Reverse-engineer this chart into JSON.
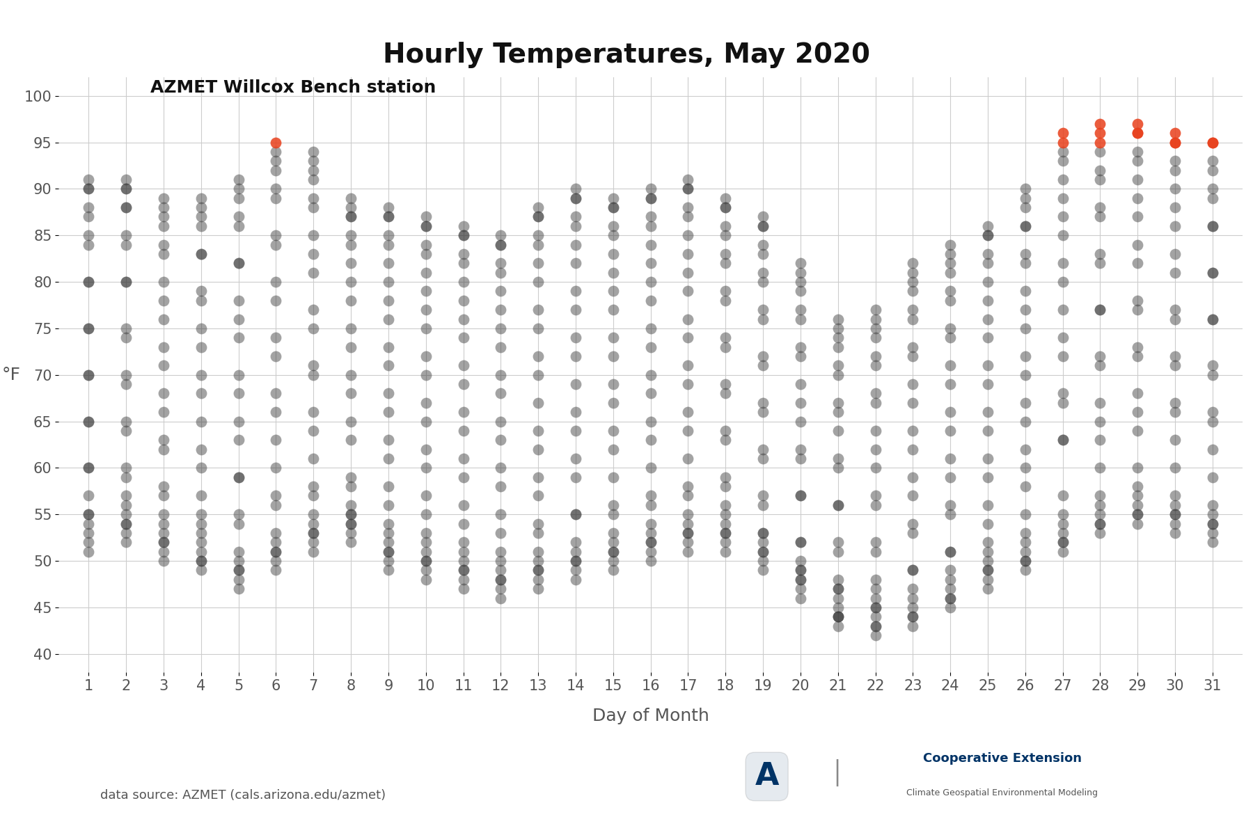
{
  "title": "Hourly Temperatures, May 2020",
  "subtitle": "AZMET Willcox Bench station",
  "xlabel": "Day of Month",
  "ylabel": "°F",
  "source_text": "data source: AZMET (cals.arizona.edu/azmet)",
  "ylim": [
    38,
    102
  ],
  "yticks": [
    40,
    45,
    50,
    55,
    60,
    65,
    70,
    75,
    80,
    85,
    90,
    95,
    100
  ],
  "days": 31,
  "background_color": "#ffffff",
  "dot_color": "#333333",
  "dot_alpha": 0.45,
  "dot_size": 130,
  "highlight_color": "#e8401c",
  "highlight_threshold": 95.0,
  "title_fontsize": 28,
  "subtitle_fontsize": 18,
  "axis_label_fontsize": 16,
  "tick_fontsize": 15,
  "source_fontsize": 13,
  "grid_color": "#cccccc",
  "hourly_temps": [
    [
      55,
      54,
      53,
      52,
      51,
      55,
      60,
      65,
      70,
      75,
      80,
      84,
      87,
      90,
      91,
      90,
      88,
      85,
      80,
      75,
      70,
      65,
      60,
      57
    ],
    [
      56,
      55,
      54,
      53,
      52,
      54,
      59,
      64,
      69,
      74,
      80,
      84,
      88,
      90,
      91,
      90,
      88,
      85,
      80,
      75,
      70,
      65,
      60,
      57
    ],
    [
      54,
      53,
      52,
      51,
      50,
      52,
      57,
      62,
      66,
      71,
      76,
      80,
      84,
      87,
      89,
      88,
      86,
      83,
      78,
      73,
      68,
      63,
      58,
      55
    ],
    [
      53,
      52,
      51,
      50,
      49,
      50,
      55,
      60,
      65,
      70,
      75,
      79,
      83,
      87,
      89,
      88,
      86,
      83,
      78,
      73,
      68,
      62,
      57,
      54
    ],
    [
      51,
      50,
      49,
      48,
      47,
      49,
      54,
      59,
      63,
      68,
      74,
      78,
      82,
      86,
      90,
      91,
      89,
      87,
      82,
      76,
      70,
      65,
      59,
      55
    ],
    [
      53,
      52,
      51,
      50,
      49,
      51,
      57,
      63,
      68,
      74,
      80,
      85,
      90,
      93,
      95,
      94,
      92,
      89,
      84,
      78,
      72,
      66,
      60,
      56
    ],
    [
      55,
      54,
      53,
      52,
      51,
      53,
      58,
      64,
      70,
      75,
      81,
      85,
      89,
      92,
      94,
      93,
      91,
      88,
      83,
      77,
      71,
      66,
      61,
      57
    ],
    [
      56,
      55,
      54,
      53,
      52,
      54,
      59,
      65,
      70,
      75,
      80,
      84,
      87,
      89,
      88,
      87,
      85,
      82,
      78,
      73,
      68,
      63,
      58,
      55
    ],
    [
      53,
      52,
      51,
      50,
      49,
      51,
      56,
      61,
      66,
      71,
      76,
      80,
      84,
      87,
      88,
      87,
      85,
      82,
      78,
      73,
      68,
      63,
      58,
      54
    ],
    [
      52,
      51,
      50,
      49,
      48,
      50,
      55,
      60,
      65,
      70,
      75,
      79,
      83,
      86,
      87,
      86,
      84,
      81,
      77,
      72,
      67,
      62,
      57,
      53
    ],
    [
      51,
      50,
      49,
      48,
      47,
      49,
      54,
      59,
      64,
      69,
      74,
      78,
      82,
      85,
      86,
      85,
      83,
      80,
      76,
      71,
      66,
      61,
      56,
      52
    ],
    [
      50,
      49,
      48,
      47,
      46,
      48,
      53,
      58,
      63,
      68,
      73,
      77,
      81,
      84,
      85,
      84,
      82,
      79,
      75,
      70,
      65,
      60,
      55,
      51
    ],
    [
      51,
      50,
      49,
      48,
      47,
      49,
      54,
      59,
      64,
      70,
      75,
      80,
      84,
      87,
      88,
      87,
      85,
      82,
      77,
      72,
      67,
      62,
      57,
      53
    ],
    [
      52,
      51,
      50,
      49,
      48,
      50,
      55,
      61,
      66,
      72,
      77,
      82,
      86,
      89,
      90,
      89,
      87,
      84,
      79,
      74,
      69,
      64,
      59,
      55
    ],
    [
      53,
      52,
      51,
      50,
      49,
      51,
      56,
      62,
      67,
      72,
      77,
      81,
      85,
      88,
      89,
      88,
      86,
      83,
      79,
      74,
      69,
      64,
      59,
      55
    ],
    [
      54,
      53,
      52,
      51,
      50,
      52,
      57,
      63,
      68,
      73,
      78,
      82,
      86,
      89,
      90,
      89,
      87,
      84,
      80,
      75,
      70,
      65,
      60,
      56
    ],
    [
      55,
      54,
      53,
      52,
      51,
      53,
      58,
      64,
      69,
      74,
      79,
      83,
      87,
      90,
      91,
      90,
      88,
      85,
      81,
      76,
      71,
      66,
      61,
      57
    ],
    [
      55,
      54,
      53,
      52,
      51,
      53,
      58,
      63,
      68,
      73,
      78,
      82,
      85,
      88,
      89,
      88,
      86,
      83,
      79,
      74,
      69,
      64,
      59,
      56
    ],
    [
      53,
      52,
      51,
      50,
      49,
      51,
      56,
      61,
      66,
      71,
      76,
      80,
      83,
      86,
      87,
      86,
      84,
      81,
      77,
      72,
      67,
      62,
      57,
      53
    ],
    [
      50,
      49,
      48,
      47,
      46,
      48,
      52,
      57,
      61,
      65,
      69,
      73,
      77,
      80,
      82,
      81,
      79,
      76,
      72,
      67,
      62,
      57,
      52,
      49
    ],
    [
      47,
      46,
      45,
      44,
      43,
      44,
      48,
      52,
      56,
      60,
      64,
      67,
      71,
      74,
      76,
      75,
      73,
      70,
      66,
      61,
      56,
      51,
      47,
      44
    ],
    [
      46,
      45,
      44,
      43,
      42,
      43,
      47,
      51,
      56,
      60,
      64,
      68,
      72,
      75,
      77,
      76,
      74,
      71,
      67,
      62,
      57,
      52,
      48,
      45
    ],
    [
      47,
      46,
      45,
      44,
      43,
      44,
      49,
      54,
      59,
      64,
      69,
      73,
      77,
      80,
      82,
      81,
      79,
      76,
      72,
      67,
      62,
      57,
      53,
      49
    ],
    [
      49,
      48,
      47,
      46,
      45,
      46,
      51,
      56,
      61,
      66,
      71,
      75,
      79,
      82,
      84,
      83,
      81,
      78,
      74,
      69,
      64,
      59,
      55,
      51
    ],
    [
      51,
      50,
      49,
      48,
      47,
      49,
      54,
      59,
      64,
      69,
      74,
      78,
      82,
      85,
      86,
      85,
      83,
      80,
      76,
      71,
      66,
      61,
      56,
      52
    ],
    [
      53,
      52,
      51,
      50,
      49,
      50,
      55,
      60,
      65,
      70,
      75,
      79,
      83,
      86,
      89,
      90,
      88,
      86,
      82,
      77,
      72,
      67,
      62,
      58
    ],
    [
      55,
      54,
      53,
      52,
      51,
      52,
      57,
      63,
      68,
      74,
      80,
      85,
      89,
      93,
      95,
      96,
      94,
      91,
      87,
      82,
      77,
      72,
      67,
      63
    ],
    [
      57,
      56,
      55,
      54,
      53,
      54,
      60,
      65,
      71,
      77,
      83,
      88,
      92,
      95,
      97,
      96,
      94,
      91,
      87,
      82,
      77,
      72,
      67,
      63
    ],
    [
      58,
      57,
      56,
      55,
      54,
      55,
      60,
      66,
      72,
      78,
      84,
      89,
      93,
      96,
      97,
      96,
      94,
      91,
      87,
      82,
      77,
      73,
      68,
      64
    ],
    [
      57,
      56,
      55,
      54,
      53,
      55,
      60,
      66,
      71,
      77,
      83,
      88,
      92,
      95,
      96,
      95,
      93,
      90,
      86,
      81,
      76,
      72,
      67,
      63
    ],
    [
      56,
      55,
      54,
      53,
      52,
      54,
      59,
      65,
      70,
      76,
      81,
      86,
      89,
      92,
      95,
      95,
      93,
      90,
      86,
      81,
      76,
      71,
      66,
      62
    ]
  ]
}
